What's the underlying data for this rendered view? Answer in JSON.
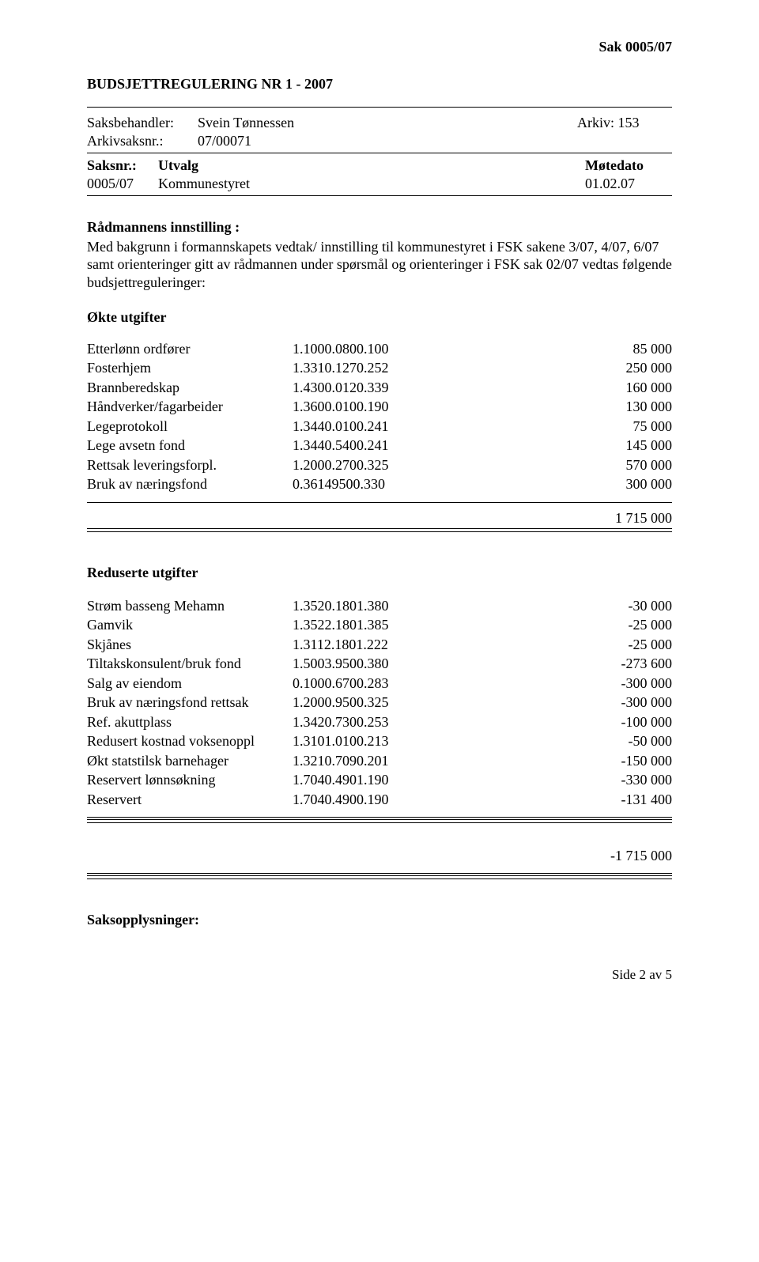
{
  "header": {
    "sak": "Sak  0005/07"
  },
  "title": "BUDSJETTREGULERING NR 1 - 2007",
  "info": {
    "saksbehandler_label": "Saksbehandler:",
    "saksbehandler": "Svein Tønnessen",
    "arkiv_label": "Arkiv: 153",
    "arkivsaksnr_label": "Arkivsaksnr.:",
    "arkivsaksnr": "07/00071",
    "saksnr_label": "Saksnr.:",
    "utvalg_label": "Utvalg",
    "motedato_label": "Møtedato",
    "saksnr": "0005/07",
    "utvalg": "Kommunestyret",
    "motedato": "01.02.07"
  },
  "innstilling": {
    "heading": "Rådmannens innstilling :",
    "body": "Med bakgrunn i formannskapets vedtak/ innstilling til kommunestyret i FSK sakene 3/07, 4/07, 6/07 samt orienteringer gitt av rådmannen under spørsmål og orienteringer i FSK sak 02/07 vedtas følgende budsjettreguleringer:"
  },
  "okte": {
    "heading": "Økte utgifter",
    "rows": [
      {
        "label": "Etterlønn ordfører",
        "code": "1.1000.0800.100",
        "amount": "85 000"
      },
      {
        "label": "Fosterhjem",
        "code": "1.3310.1270.252",
        "amount": "250 000"
      },
      {
        "label": "Brannberedskap",
        "code": "1.4300.0120.339",
        "amount": "160 000"
      },
      {
        "label": "Håndverker/fagarbeider",
        "code": "1.3600.0100.190",
        "amount": "130 000"
      },
      {
        "label": "Legeprotokoll",
        "code": "1.3440.0100.241",
        "amount": "75 000"
      },
      {
        "label": "Lege avsetn fond",
        "code": "1.3440.5400.241",
        "amount": "145 000"
      },
      {
        "label": "Rettsak leveringsforpl.",
        "code": "1.2000.2700.325",
        "amount": "570 000"
      },
      {
        "label": "Bruk av næringsfond",
        "code": "0.36149500.330",
        "amount": "300 000"
      }
    ],
    "total": "1 715 000"
  },
  "reduserte": {
    "heading": "Reduserte utgifter",
    "rows": [
      {
        "label": "Strøm basseng Mehamn",
        "code": "1.3520.1801.380",
        "amount": "-30 000"
      },
      {
        "label": "Gamvik",
        "code": "1.3522.1801.385",
        "amount": "-25 000"
      },
      {
        "label": "Skjånes",
        "code": "1.3112.1801.222",
        "amount": "-25 000"
      },
      {
        "label": "Tiltakskonsulent/bruk fond",
        "code": "1.5003.9500.380",
        "amount": "-273 600"
      },
      {
        "label": "Salg av eiendom",
        "code": "0.1000.6700.283",
        "amount": "-300 000"
      },
      {
        "label": "Bruk av næringsfond rettsak",
        "code": "1.2000.9500.325",
        "amount": "-300 000"
      },
      {
        "label": "Ref. akuttplass",
        "code": "1.3420.7300.253",
        "amount": "-100 000"
      },
      {
        "label": "Redusert kostnad voksenoppl",
        "code": "1.3101.0100.213",
        "amount": "-50 000"
      },
      {
        "label": "Økt statstilsk barnehager",
        "code": "1.3210.7090.201",
        "amount": "-150 000"
      },
      {
        "label": "Reservert lønnsøkning",
        "code": "1.7040.4901.190",
        "amount": "-330 000"
      },
      {
        "label": "Reservert",
        "code": "1.7040.4900.190",
        "amount": "-131 400"
      }
    ],
    "total": "-1 715 000"
  },
  "saksopp": "Saksopplysninger:",
  "footer": "Side 2 av 5"
}
